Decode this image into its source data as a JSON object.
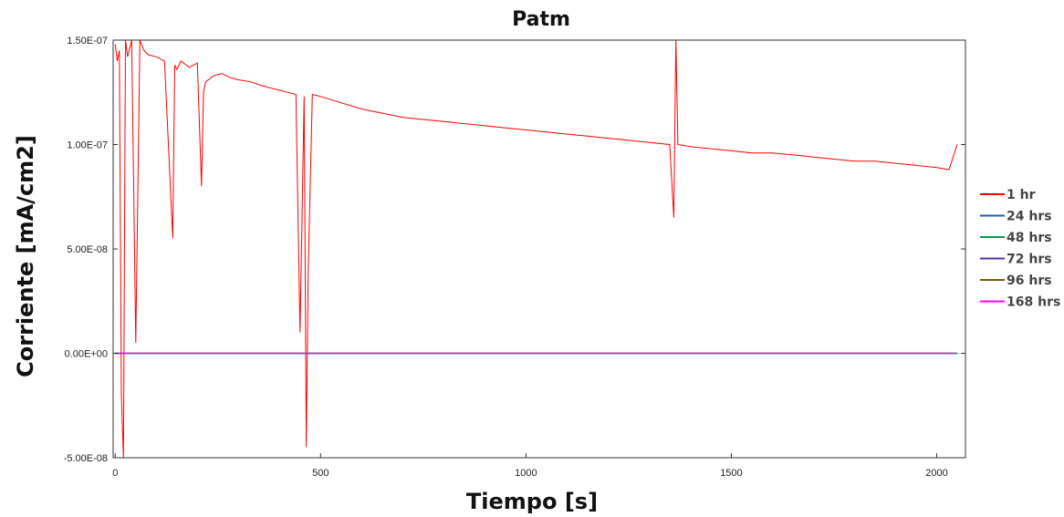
{
  "chart_data": {
    "type": "line",
    "title": "Patm",
    "xlabel": "Tiempo [s]",
    "ylabel": "Corriente [mA/cm2]",
    "xlim": [
      -5,
      2070
    ],
    "ylim": [
      -5e-08,
      1.5e-07
    ],
    "xticks": [
      0,
      500,
      1000,
      1500,
      2000
    ],
    "xtick_labels": [
      "0",
      "500",
      "1000",
      "1500",
      "2000"
    ],
    "yticks": [
      -5e-08,
      0,
      5e-08,
      1e-07,
      1.5e-07
    ],
    "ytick_labels": [
      "-5.00E-08",
      "0.00E+00",
      "5.00E-08",
      "1.00E-07",
      "1.50E-07"
    ],
    "grid": false,
    "legend_position": "right",
    "series": [
      {
        "name": "1 hr",
        "color": "#ff0000",
        "x": [
          0,
          5,
          10,
          15,
          20,
          25,
          30,
          40,
          50,
          60,
          70,
          80,
          100,
          120,
          140,
          145,
          150,
          160,
          180,
          200,
          210,
          215,
          220,
          240,
          260,
          280,
          300,
          330,
          360,
          380,
          400,
          420,
          440,
          450,
          460,
          465,
          470,
          480,
          500,
          550,
          600,
          650,
          700,
          750,
          800,
          850,
          900,
          950,
          1000,
          1050,
          1100,
          1150,
          1200,
          1250,
          1300,
          1350,
          1360,
          1365,
          1370,
          1400,
          1450,
          1500,
          1550,
          1600,
          1650,
          1700,
          1750,
          1800,
          1850,
          1900,
          1950,
          2000,
          2030,
          2050
        ],
        "y": [
          1.48e-07,
          1.4e-07,
          1.45e-07,
          -2e-08,
          -5e-08,
          1.5e-07,
          1.42e-07,
          1.5e-07,
          5e-09,
          1.5e-07,
          1.45e-07,
          1.43e-07,
          1.42e-07,
          1.4e-07,
          5.5e-08,
          1.38e-07,
          1.36e-07,
          1.4e-07,
          1.37e-07,
          1.39e-07,
          8e-08,
          1.25e-07,
          1.3e-07,
          1.33e-07,
          1.34e-07,
          1.32e-07,
          1.31e-07,
          1.3e-07,
          1.28e-07,
          1.27e-07,
          1.26e-07,
          1.25e-07,
          1.24e-07,
          1e-08,
          1.23e-07,
          -4.5e-08,
          4e-08,
          1.24e-07,
          1.23e-07,
          1.2e-07,
          1.17e-07,
          1.15e-07,
          1.13e-07,
          1.12e-07,
          1.11e-07,
          1.1e-07,
          1.09e-07,
          1.08e-07,
          1.07e-07,
          1.06e-07,
          1.05e-07,
          1.04e-07,
          1.03e-07,
          1.02e-07,
          1.01e-07,
          1e-07,
          6.5e-08,
          1.5e-07,
          1e-07,
          9.9e-08,
          9.8e-08,
          9.7e-08,
          9.6e-08,
          9.6e-08,
          9.5e-08,
          9.4e-08,
          9.3e-08,
          9.2e-08,
          9.2e-08,
          9.1e-08,
          9e-08,
          8.9e-08,
          8.8e-08,
          1e-07
        ]
      },
      {
        "name": "24 hrs",
        "color": "#1f5fa8",
        "x": [
          0,
          500,
          1000,
          1500,
          2000,
          2050
        ],
        "y": [
          0,
          0,
          0,
          0,
          0,
          0
        ]
      },
      {
        "name": "48 hrs",
        "color": "#00a050",
        "x": [
          0,
          500,
          1000,
          1500,
          2000,
          2050
        ],
        "y": [
          0,
          0,
          0,
          0,
          0,
          0
        ]
      },
      {
        "name": "72 hrs",
        "color": "#5a2ea6",
        "x": [
          0,
          500,
          1000,
          1500,
          2000,
          2050
        ],
        "y": [
          0,
          0,
          0,
          0,
          0,
          0
        ]
      },
      {
        "name": "96 hrs",
        "color": "#7a5a00",
        "x": [
          0,
          500,
          1000,
          1500,
          2000,
          2050
        ],
        "y": [
          0,
          0,
          0,
          0,
          0,
          0
        ]
      },
      {
        "name": "168 hrs",
        "color": "#ff00ff",
        "x": [
          0,
          500,
          1000,
          1500,
          2000,
          2050
        ],
        "y": [
          0,
          0,
          0,
          0,
          0,
          0
        ]
      }
    ]
  }
}
